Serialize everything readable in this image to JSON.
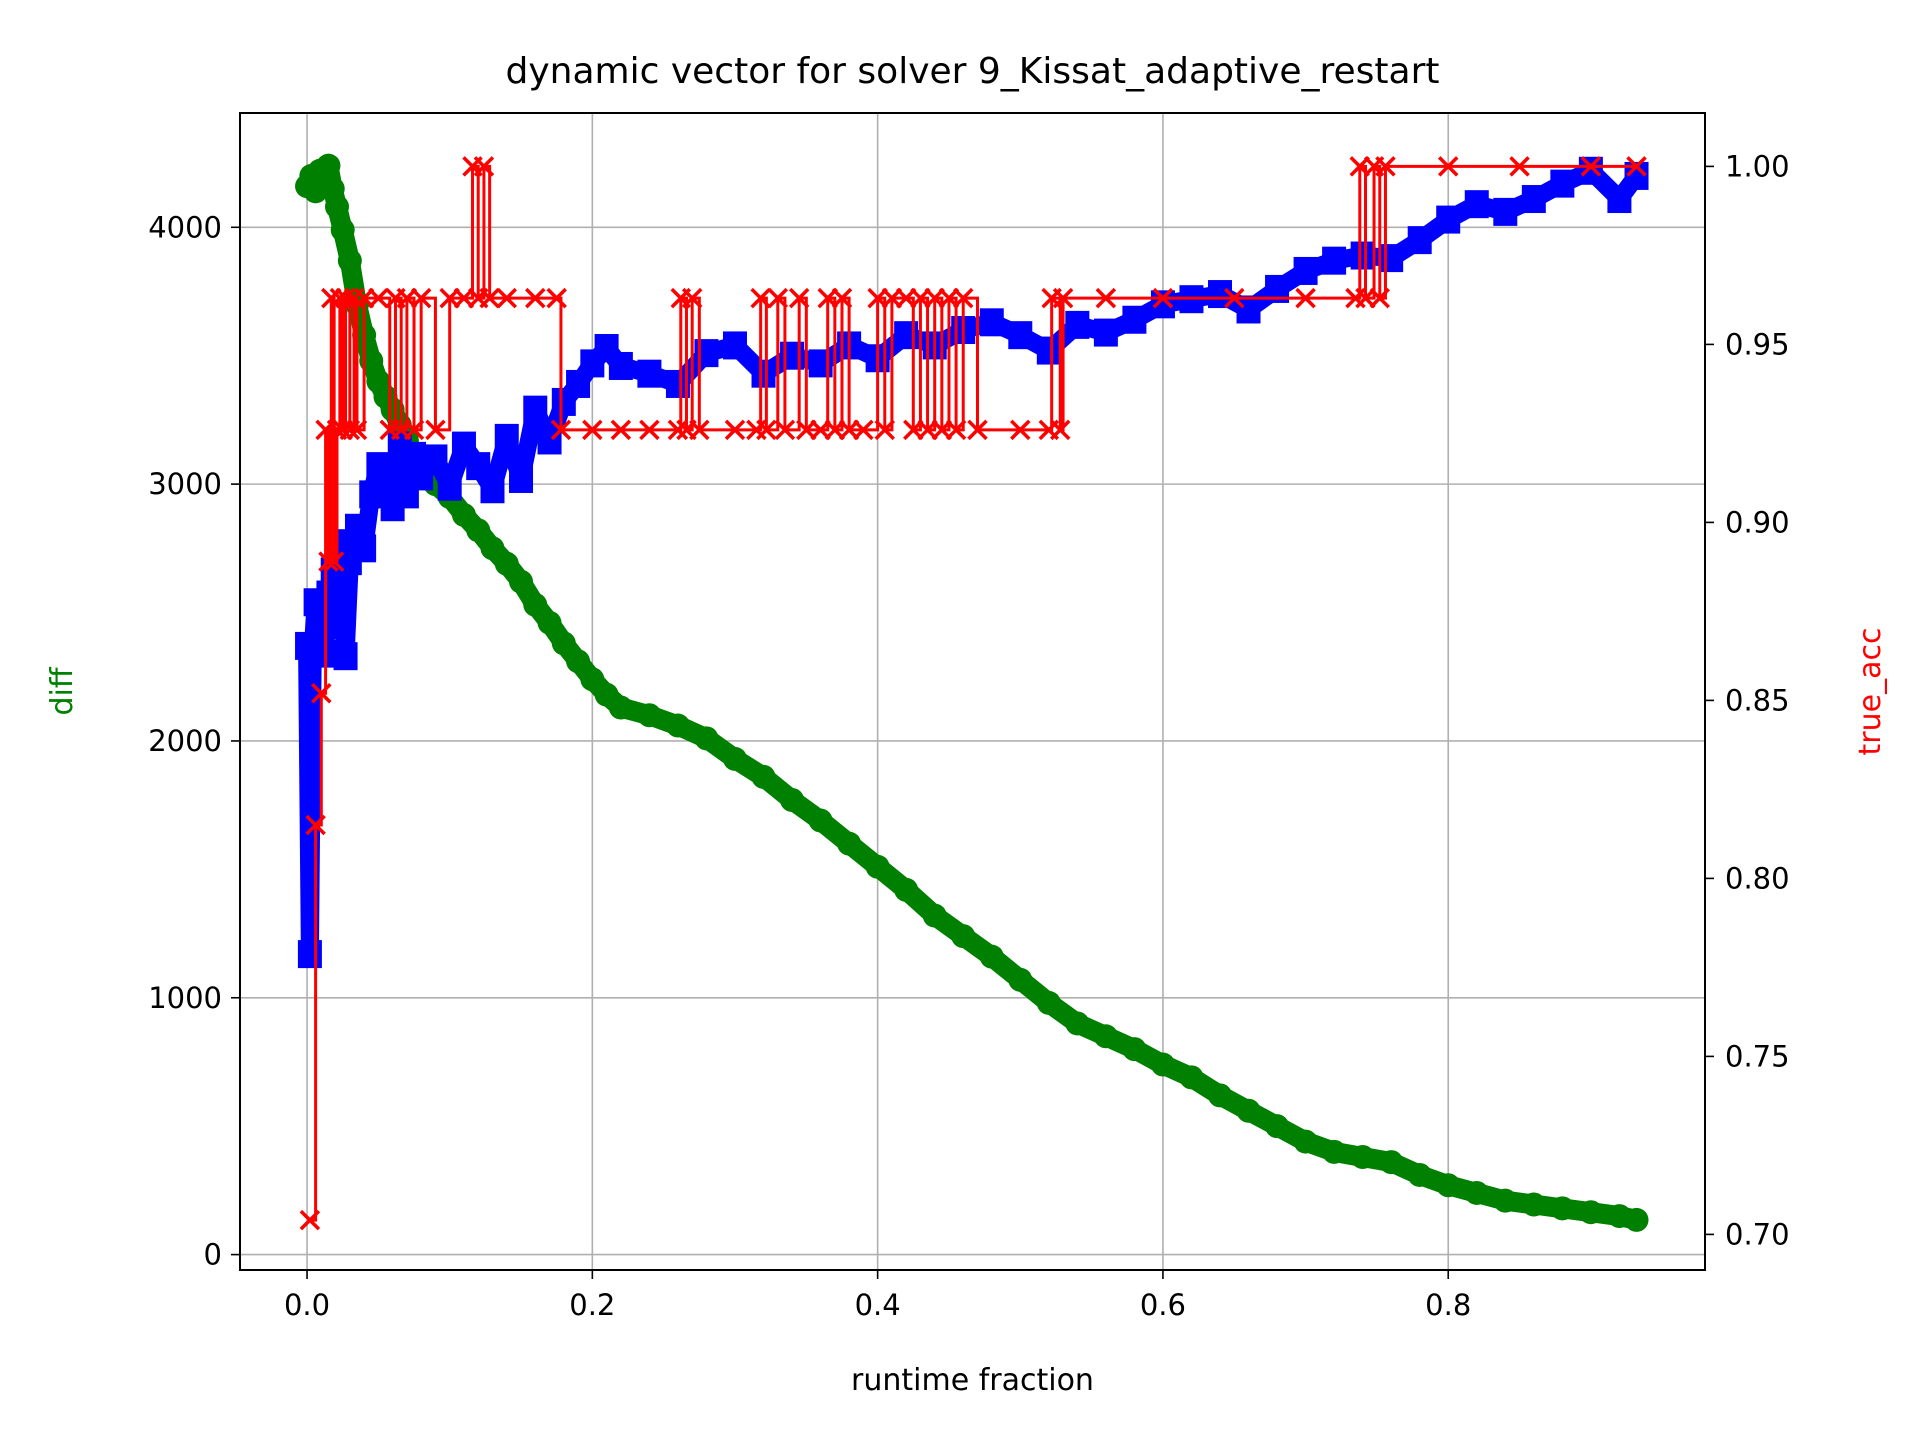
{
  "chart_data": {
    "type": "line",
    "title": "dynamic vector for solver 9_Kissat_adaptive_restart",
    "xlabel": "runtime fraction",
    "ylabel": "diff",
    "y2label": "true_acc",
    "xlim": [
      -0.047,
      0.98
    ],
    "ylim": [
      -60,
      4445
    ],
    "y2lim": [
      0.69,
      1.015
    ],
    "xticks": [
      0.0,
      0.2,
      0.4,
      0.6,
      0.8
    ],
    "xtick_labels": [
      "0.0",
      "0.2",
      "0.4",
      "0.6",
      "0.8"
    ],
    "yticks": [
      0,
      1000,
      2000,
      3000,
      4000
    ],
    "ytick_labels": [
      "0",
      "1000",
      "2000",
      "3000",
      "4000"
    ],
    "y2ticks": [
      0.7,
      0.75,
      0.8,
      0.85,
      0.9,
      0.95,
      1.0
    ],
    "y2tick_labels": [
      "0.70",
      "0.75",
      "0.80",
      "0.85",
      "0.90",
      "0.95",
      "1.00"
    ],
    "grid": true,
    "legend": "none",
    "colors": {
      "green": "#008000",
      "blue": "#0000ff",
      "red": "#ff0000",
      "ylabel": "#008000",
      "y2label": "#ff0000"
    },
    "series": [
      {
        "color": "green",
        "marker": "circle",
        "axis": "left",
        "points": [
          [
            0.0,
            4160
          ],
          [
            0.003,
            4200
          ],
          [
            0.006,
            4140
          ],
          [
            0.009,
            4220
          ],
          [
            0.012,
            4190
          ],
          [
            0.015,
            4240
          ],
          [
            0.018,
            4150
          ],
          [
            0.021,
            4080
          ],
          [
            0.025,
            3990
          ],
          [
            0.03,
            3870
          ],
          [
            0.035,
            3700
          ],
          [
            0.04,
            3580
          ],
          [
            0.045,
            3480
          ],
          [
            0.05,
            3400
          ],
          [
            0.055,
            3340
          ],
          [
            0.06,
            3290
          ],
          [
            0.065,
            3230
          ],
          [
            0.07,
            3170
          ],
          [
            0.075,
            3110
          ],
          [
            0.08,
            3060
          ],
          [
            0.09,
            3000
          ],
          [
            0.1,
            2950
          ],
          [
            0.11,
            2880
          ],
          [
            0.12,
            2820
          ],
          [
            0.13,
            2750
          ],
          [
            0.14,
            2690
          ],
          [
            0.15,
            2620
          ],
          [
            0.16,
            2530
          ],
          [
            0.17,
            2460
          ],
          [
            0.18,
            2380
          ],
          [
            0.19,
            2310
          ],
          [
            0.2,
            2240
          ],
          [
            0.21,
            2180
          ],
          [
            0.22,
            2130
          ],
          [
            0.24,
            2100
          ],
          [
            0.26,
            2060
          ],
          [
            0.28,
            2010
          ],
          [
            0.3,
            1930
          ],
          [
            0.32,
            1860
          ],
          [
            0.34,
            1770
          ],
          [
            0.36,
            1690
          ],
          [
            0.38,
            1600
          ],
          [
            0.4,
            1510
          ],
          [
            0.42,
            1420
          ],
          [
            0.44,
            1320
          ],
          [
            0.46,
            1240
          ],
          [
            0.48,
            1160
          ],
          [
            0.5,
            1070
          ],
          [
            0.52,
            980
          ],
          [
            0.54,
            900
          ],
          [
            0.56,
            850
          ],
          [
            0.58,
            800
          ],
          [
            0.6,
            740
          ],
          [
            0.62,
            690
          ],
          [
            0.64,
            620
          ],
          [
            0.66,
            560
          ],
          [
            0.68,
            500
          ],
          [
            0.7,
            440
          ],
          [
            0.72,
            400
          ],
          [
            0.74,
            380
          ],
          [
            0.76,
            360
          ],
          [
            0.78,
            310
          ],
          [
            0.8,
            270
          ],
          [
            0.82,
            240
          ],
          [
            0.84,
            210
          ],
          [
            0.86,
            195
          ],
          [
            0.88,
            180
          ],
          [
            0.9,
            165
          ],
          [
            0.92,
            150
          ],
          [
            0.932,
            135
          ]
        ]
      },
      {
        "color": "blue",
        "marker": "square",
        "axis": "left",
        "points": [
          [
            0.0,
            2370
          ],
          [
            0.002,
            1170
          ],
          [
            0.004,
            2350
          ],
          [
            0.006,
            2540
          ],
          [
            0.009,
            2450
          ],
          [
            0.012,
            2340
          ],
          [
            0.015,
            2570
          ],
          [
            0.018,
            2660
          ],
          [
            0.021,
            2450
          ],
          [
            0.024,
            2770
          ],
          [
            0.027,
            2330
          ],
          [
            0.03,
            2700
          ],
          [
            0.035,
            2830
          ],
          [
            0.04,
            2750
          ],
          [
            0.045,
            2960
          ],
          [
            0.05,
            3070
          ],
          [
            0.055,
            3040
          ],
          [
            0.06,
            2910
          ],
          [
            0.065,
            3150
          ],
          [
            0.07,
            2960
          ],
          [
            0.075,
            3110
          ],
          [
            0.08,
            3030
          ],
          [
            0.09,
            3100
          ],
          [
            0.1,
            2990
          ],
          [
            0.11,
            3150
          ],
          [
            0.12,
            3070
          ],
          [
            0.13,
            2980
          ],
          [
            0.14,
            3180
          ],
          [
            0.15,
            3020
          ],
          [
            0.16,
            3290
          ],
          [
            0.17,
            3170
          ],
          [
            0.18,
            3320
          ],
          [
            0.19,
            3390
          ],
          [
            0.2,
            3470
          ],
          [
            0.21,
            3530
          ],
          [
            0.22,
            3460
          ],
          [
            0.24,
            3430
          ],
          [
            0.26,
            3390
          ],
          [
            0.28,
            3510
          ],
          [
            0.3,
            3540
          ],
          [
            0.32,
            3430
          ],
          [
            0.34,
            3500
          ],
          [
            0.36,
            3470
          ],
          [
            0.38,
            3540
          ],
          [
            0.4,
            3490
          ],
          [
            0.42,
            3580
          ],
          [
            0.44,
            3540
          ],
          [
            0.46,
            3600
          ],
          [
            0.48,
            3630
          ],
          [
            0.5,
            3580
          ],
          [
            0.52,
            3520
          ],
          [
            0.54,
            3620
          ],
          [
            0.56,
            3590
          ],
          [
            0.58,
            3640
          ],
          [
            0.6,
            3700
          ],
          [
            0.62,
            3720
          ],
          [
            0.64,
            3740
          ],
          [
            0.66,
            3680
          ],
          [
            0.68,
            3760
          ],
          [
            0.7,
            3830
          ],
          [
            0.72,
            3870
          ],
          [
            0.74,
            3890
          ],
          [
            0.76,
            3880
          ],
          [
            0.78,
            3950
          ],
          [
            0.8,
            4030
          ],
          [
            0.82,
            4090
          ],
          [
            0.84,
            4060
          ],
          [
            0.86,
            4110
          ],
          [
            0.88,
            4170
          ],
          [
            0.9,
            4220
          ],
          [
            0.92,
            4110
          ],
          [
            0.932,
            4200
          ]
        ]
      },
      {
        "color": "red",
        "marker": "x",
        "axis": "right",
        "points": [
          [
            0.002,
            0.704
          ],
          [
            0.006,
            0.815
          ],
          [
            0.01,
            0.852
          ],
          [
            0.013,
            0.926
          ],
          [
            0.015,
            0.889
          ],
          [
            0.017,
            0.963
          ],
          [
            0.019,
            0.889
          ],
          [
            0.021,
            0.926
          ],
          [
            0.023,
            0.963
          ],
          [
            0.025,
            0.926
          ],
          [
            0.027,
            0.963
          ],
          [
            0.03,
            0.926
          ],
          [
            0.033,
            0.963
          ],
          [
            0.035,
            0.926
          ],
          [
            0.04,
            0.963
          ],
          [
            0.05,
            0.963
          ],
          [
            0.058,
            0.926
          ],
          [
            0.062,
            0.963
          ],
          [
            0.066,
            0.926
          ],
          [
            0.07,
            0.963
          ],
          [
            0.075,
            0.926
          ],
          [
            0.08,
            0.963
          ],
          [
            0.09,
            0.926
          ],
          [
            0.1,
            0.963
          ],
          [
            0.11,
            0.963
          ],
          [
            0.116,
            1.0
          ],
          [
            0.12,
            0.963
          ],
          [
            0.124,
            1.0
          ],
          [
            0.128,
            0.963
          ],
          [
            0.14,
            0.963
          ],
          [
            0.16,
            0.963
          ],
          [
            0.175,
            0.963
          ],
          [
            0.178,
            0.926
          ],
          [
            0.2,
            0.926
          ],
          [
            0.22,
            0.926
          ],
          [
            0.24,
            0.926
          ],
          [
            0.26,
            0.926
          ],
          [
            0.262,
            0.963
          ],
          [
            0.266,
            0.926
          ],
          [
            0.27,
            0.963
          ],
          [
            0.275,
            0.926
          ],
          [
            0.3,
            0.926
          ],
          [
            0.315,
            0.926
          ],
          [
            0.318,
            0.963
          ],
          [
            0.322,
            0.926
          ],
          [
            0.33,
            0.963
          ],
          [
            0.335,
            0.926
          ],
          [
            0.345,
            0.963
          ],
          [
            0.35,
            0.926
          ],
          [
            0.36,
            0.926
          ],
          [
            0.365,
            0.963
          ],
          [
            0.37,
            0.926
          ],
          [
            0.375,
            0.963
          ],
          [
            0.38,
            0.926
          ],
          [
            0.39,
            0.926
          ],
          [
            0.4,
            0.963
          ],
          [
            0.405,
            0.926
          ],
          [
            0.41,
            0.963
          ],
          [
            0.42,
            0.963
          ],
          [
            0.425,
            0.926
          ],
          [
            0.43,
            0.963
          ],
          [
            0.435,
            0.926
          ],
          [
            0.44,
            0.963
          ],
          [
            0.445,
            0.926
          ],
          [
            0.45,
            0.963
          ],
          [
            0.455,
            0.926
          ],
          [
            0.46,
            0.963
          ],
          [
            0.47,
            0.926
          ],
          [
            0.5,
            0.926
          ],
          [
            0.52,
            0.926
          ],
          [
            0.522,
            0.963
          ],
          [
            0.528,
            0.926
          ],
          [
            0.53,
            0.963
          ],
          [
            0.56,
            0.963
          ],
          [
            0.6,
            0.963
          ],
          [
            0.65,
            0.963
          ],
          [
            0.7,
            0.963
          ],
          [
            0.735,
            0.963
          ],
          [
            0.738,
            1.0
          ],
          [
            0.742,
            0.963
          ],
          [
            0.748,
            1.0
          ],
          [
            0.752,
            0.963
          ],
          [
            0.756,
            1.0
          ],
          [
            0.8,
            1.0
          ],
          [
            0.85,
            1.0
          ],
          [
            0.9,
            1.0
          ],
          [
            0.932,
            1.0
          ]
        ]
      }
    ]
  }
}
